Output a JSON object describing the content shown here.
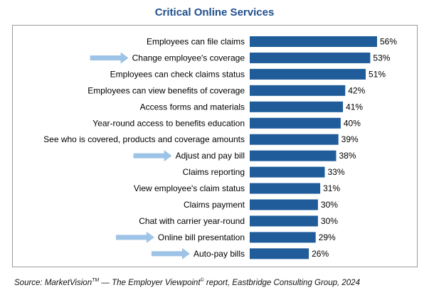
{
  "chart_data": {
    "type": "bar",
    "orientation": "horizontal",
    "title": "Critical Online Services",
    "categories": [
      "Employees can file claims",
      "Change employee's coverage",
      "Employees can check claims status",
      "Employees can view benefits of coverage",
      "Access forms and materials",
      "Year-round access to benefits education",
      "See who is covered, products and coverage amounts",
      "Adjust and pay bill",
      "Claims reporting",
      "View employee's claim status",
      "Claims payment",
      "Chat with carrier year-round",
      "Online bill presentation",
      "Auto-pay bills"
    ],
    "values": [
      56,
      53,
      51,
      42,
      41,
      40,
      39,
      38,
      33,
      31,
      30,
      30,
      29,
      26
    ],
    "value_labels": [
      "56%",
      "53%",
      "51%",
      "42%",
      "41%",
      "40%",
      "39%",
      "38%",
      "33%",
      "31%",
      "30%",
      "30%",
      "29%",
      "26%"
    ],
    "highlighted": [
      false,
      true,
      false,
      false,
      false,
      false,
      false,
      true,
      false,
      false,
      false,
      false,
      true,
      true
    ],
    "xlim": [
      0,
      56
    ],
    "xlabel": "",
    "ylabel": "",
    "grid": false,
    "bar_color": "#1f5c99",
    "arrow_color": "#9dc3e6"
  },
  "title": "Critical Online Services",
  "source": {
    "prefix": "Source: MarketVision",
    "tm": "TM",
    "middle": " — The Employer Viewpoint",
    "copyright": "©",
    "suffix": " report, Eastbridge Consulting Group, 2024"
  },
  "colors": {
    "title": "#1f4e8c",
    "frame": "#9a9a9a"
  }
}
